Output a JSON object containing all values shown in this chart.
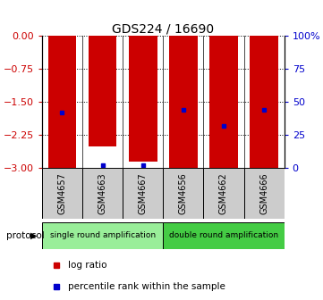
{
  "title": "GDS224 / 16690",
  "samples": [
    "GSM4657",
    "GSM4663",
    "GSM4667",
    "GSM4656",
    "GSM4662",
    "GSM4666"
  ],
  "log_ratio": [
    -3.0,
    -2.5,
    -2.85,
    -3.0,
    -3.0,
    -3.0
  ],
  "percentile_rank": [
    42,
    2,
    2,
    44,
    32,
    44
  ],
  "ylim_left": [
    -3.0,
    0.0
  ],
  "yticks_left": [
    0,
    -0.75,
    -1.5,
    -2.25,
    -3
  ],
  "yticks_right": [
    100,
    75,
    50,
    25,
    0
  ],
  "protocol_groups": [
    {
      "label": "single round amplification",
      "samples": [
        0,
        1,
        2
      ],
      "color": "#99ee99"
    },
    {
      "label": "double round amplification",
      "samples": [
        3,
        4,
        5
      ],
      "color": "#44cc44"
    }
  ],
  "bar_color": "#cc0000",
  "marker_color": "#0000cc",
  "left_axis_color": "#cc0000",
  "right_axis_color": "#0000cc",
  "sample_box_color": "#cccccc",
  "bar_width": 0.7,
  "figsize": [
    3.61,
    3.36
  ],
  "dpi": 100
}
